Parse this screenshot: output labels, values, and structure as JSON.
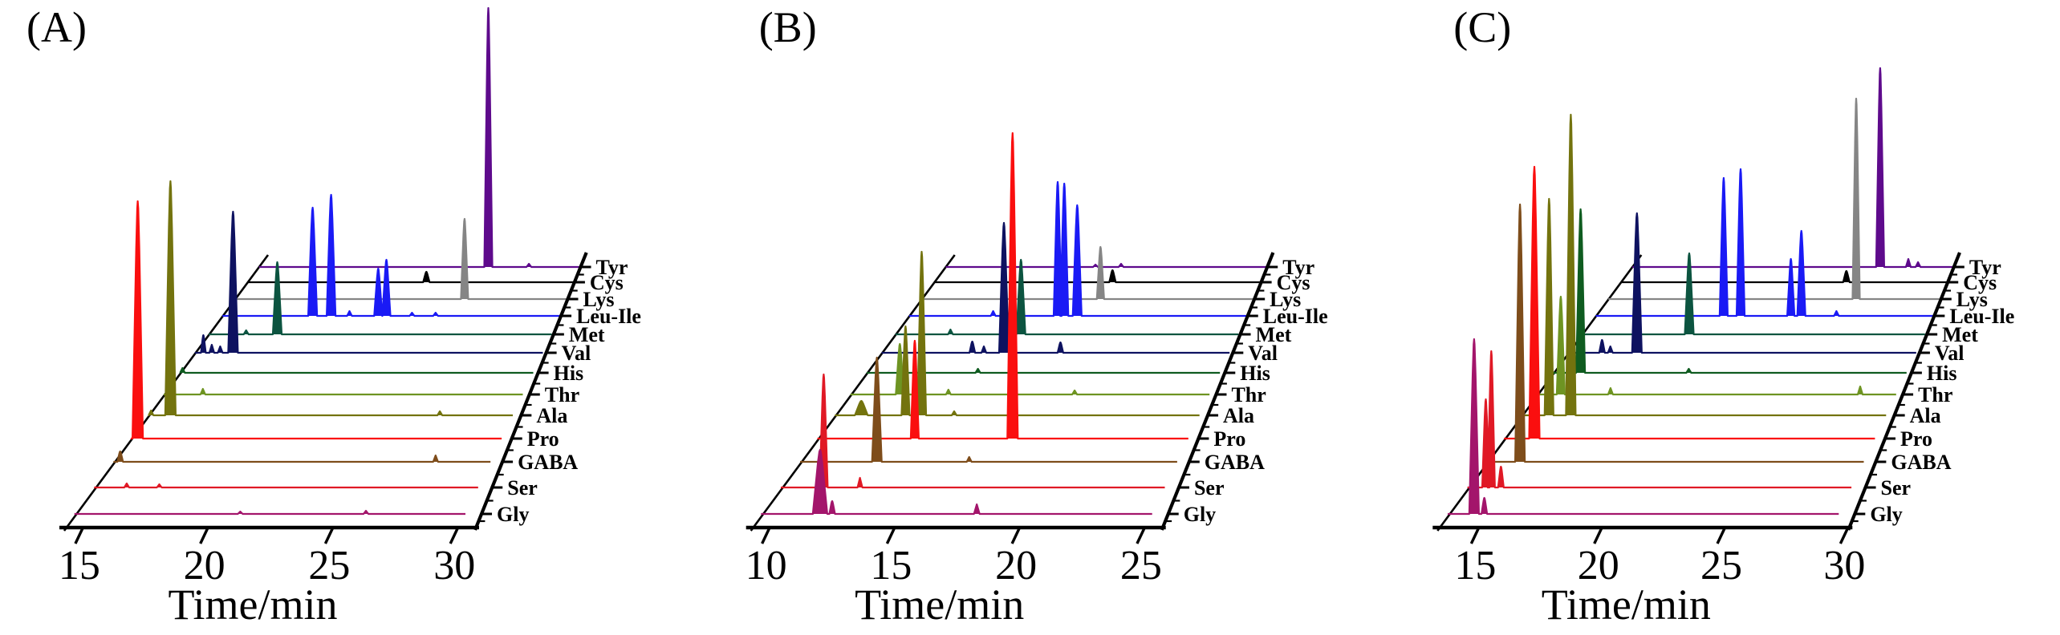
{
  "figure": {
    "xlabel": "Time/min",
    "row_labels_front_to_back": [
      "Gly",
      "Ser",
      "GABA",
      "Pro",
      "Ala",
      "Thr",
      "His",
      "Val",
      "Met",
      "Leu-Ile",
      "Lys",
      "Cys",
      "Tyr"
    ],
    "panel_letters": [
      "(A)",
      "(B)",
      "(C)"
    ]
  },
  "chart_data": {
    "type": "line",
    "subtype": "3d-waterfall-chromatograms",
    "xlabel": "Time/min",
    "note": "Three stacked-offset (waterfall) chromatogram panels; 13 traces per panel, front-to-back order Gly..Tyr; peak values are [time_min_as_drawn, amplitude_px, halfwidth_px]",
    "colors": {
      "Gly": "#a3156b",
      "Ser": "#e01925",
      "GABA": "#7e4d1b",
      "Pro": "#fa0f0f",
      "Ala": "#73730e",
      "Thr": "#6e9422",
      "His": "#0f5c20",
      "Val": "#0e1260",
      "Met": "#0c5440",
      "Leu-Ile": "#1a1af5",
      "Lys": "#858585",
      "Cys": "#000000",
      "Tyr": "#5e0a8c"
    },
    "panels": [
      {
        "label": "(A)",
        "letter_x": 33,
        "x_ticks": [
          15,
          20,
          25,
          30
        ],
        "t_start": 14.2,
        "t_end": 30.7,
        "rows": {
          "Gly": [
            [
              21.2,
              3,
              3
            ],
            [
              26.5,
              4,
              3
            ]
          ],
          "Ser": [
            [
              15.6,
              5,
              3
            ],
            [
              17.0,
              4,
              3
            ]
          ],
          "GABA": [
            [
              14.5,
              13,
              3.5
            ],
            [
              28.3,
              8,
              3
            ]
          ],
          "Pro": [
            [
              14.51,
              296,
              6.5
            ]
          ],
          "Ala": [
            [
              14.33,
              6,
              3
            ],
            [
              15.21,
              292,
              6.5
            ],
            [
              27.4,
              5,
              3
            ]
          ],
          "Thr": [
            [
              16.0,
              7,
              3
            ]
          ],
          "His": [
            [
              14.32,
              6,
              3
            ]
          ],
          "Val": [
            [
              14.6,
              22,
              3
            ],
            [
              15.0,
              10,
              3
            ],
            [
              15.4,
              8,
              3
            ],
            [
              16.01,
              176,
              6
            ]
          ],
          "Met": [
            [
              16.0,
              5,
              3
            ],
            [
              17.5,
              90,
              5.5
            ]
          ],
          "Leu-Ile": [
            [
              18.6,
              135,
              5.5
            ],
            [
              19.5,
              151,
              5.5
            ],
            [
              20.4,
              6,
              3
            ],
            [
              21.8,
              59,
              5
            ],
            [
              22.2,
              70,
              5
            ],
            [
              23.45,
              4,
              3
            ],
            [
              24.6,
              4,
              3
            ]
          ],
          "Lys": [
            [
              25.55,
              100,
              4.5
            ]
          ],
          "Cys": [
            [
              23.16,
              13,
              4
            ]
          ],
          "Tyr": [
            [
              25.84,
              323,
              5
            ],
            [
              27.9,
              4,
              3
            ]
          ]
        }
      },
      {
        "label": "(B)",
        "letter_x": 90,
        "x_ticks": [
          10,
          15,
          20,
          25
        ],
        "t_start": 9.2,
        "t_end": 25.7,
        "rows": {
          "Gly": [
            [
              11.69,
              80,
              9
            ],
            [
              12.2,
              16,
              3.5
            ],
            [
              18.3,
              12,
              3.5
            ]
          ],
          "Ser": [
            [
              11.04,
              141,
              5
            ],
            [
              12.6,
              12,
              3
            ]
          ],
          "GABA": [
            [
              12.56,
              130,
              6
            ],
            [
              16.6,
              6,
              3
            ]
          ],
          "Pro": [
            [
              13.53,
              122,
              5
            ],
            [
              17.88,
              381,
              6.5
            ]
          ],
          "Ala": [
            [
              10.4,
              18,
              8
            ],
            [
              12.4,
              111,
              5
            ],
            [
              13.13,
              204,
              5.5
            ],
            [
              14.6,
              5,
              3
            ]
          ],
          "Thr": [
            [
              11.47,
              63,
              5
            ],
            [
              13.7,
              6,
              3
            ],
            [
              19.5,
              5,
              3
            ]
          ],
          "His": [
            [
              9.37,
              102,
              5
            ],
            [
              14.4,
              5,
              3
            ]
          ],
          "Val": [
            [
              13.5,
              14,
              3.5
            ],
            [
              14.05,
              8,
              3
            ],
            [
              15.0,
              162,
              6
            ],
            [
              17.68,
              13,
              3.5
            ]
          ],
          "Met": [
            [
              11.85,
              6,
              3
            ],
            [
              15.24,
              93,
              5.5
            ]
          ],
          "Leu-Ile": [
            [
              13.3,
              6,
              3
            ],
            [
              16.45,
              167,
              5
            ],
            [
              16.77,
              165,
              5
            ],
            [
              17.4,
              138,
              5.5
            ]
          ],
          "Lys": [
            [
              18.04,
              65,
              4.5
            ]
          ],
          "Cys": [
            [
              18.13,
              15,
              4
            ]
          ],
          "Tyr": [
            [
              16.8,
              3,
              3
            ],
            [
              18.1,
              4,
              3
            ]
          ]
        }
      },
      {
        "label": "(C)",
        "letter_x": 100,
        "x_ticks": [
          15,
          20,
          25,
          30
        ],
        "t_start": 13.27,
        "t_end": 30.03,
        "rows": {
          "Gly": [
            [
              14.4,
              218,
              6
            ],
            [
              14.84,
              20,
              3.5
            ]
          ],
          "Ser": [
            [
              14.07,
              110,
              4.5
            ],
            [
              14.31,
              170,
              4.5
            ],
            [
              14.73,
              26,
              3.5
            ]
          ],
          "GABA": [
            [
              14.75,
              321,
              6
            ]
          ],
          "Pro": [
            [
              14.64,
              339,
              6.5
            ]
          ],
          "Ala": [
            [
              14.54,
              270,
              5.5
            ],
            [
              15.54,
              375,
              6
            ]
          ],
          "Thr": [
            [
              14.38,
              122,
              5
            ],
            [
              16.7,
              8,
              3
            ],
            [
              28.35,
              10,
              3
            ]
          ],
          "His": [
            [
              14.57,
              204,
              5.5
            ],
            [
              19.7,
              5,
              3
            ]
          ],
          "Val": [
            [
              14.9,
              16,
              3.5
            ],
            [
              15.3,
              8,
              3
            ],
            [
              16.58,
              174,
              6
            ]
          ],
          "Met": [
            [
              18.51,
              101,
              5.5
            ]
          ],
          "Leu-Ile": [
            [
              19.61,
              172,
              5
            ],
            [
              20.45,
              183,
              5
            ],
            [
              22.94,
              71,
              4.5
            ],
            [
              23.46,
              106,
              5
            ],
            [
              25.2,
              6,
              3
            ]
          ],
          "Lys": [
            [
              25.72,
              250,
              4.5
            ]
          ],
          "Cys": [
            [
              24.75,
              14,
              4
            ]
          ],
          "Tyr": [
            [
              26.05,
              248,
              5
            ],
            [
              27.5,
              10,
              3
            ],
            [
              28.0,
              6,
              3
            ]
          ]
        }
      }
    ]
  }
}
